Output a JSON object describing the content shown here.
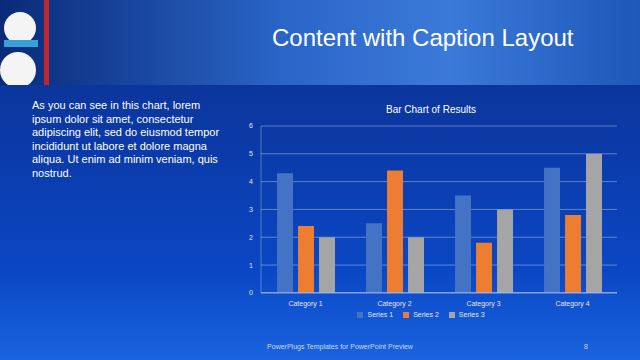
{
  "slide": {
    "title": "Content with Caption Layout",
    "caption": "As you can see in this chart, lorem ipsum dolor sit amet, consectetur adipiscing elit, sed do eiusmod tempor incididunt ut labore et dolore magna aliqua. Ut enim ad minim veniam, quis nostrud.",
    "footer": "PowerPlugs Templates for PowerPoint Preview",
    "page": "8"
  },
  "chart_data": {
    "type": "bar",
    "title": "Bar Chart of Results",
    "categories": [
      "Category 1",
      "Category 2",
      "Category 3",
      "Category 4"
    ],
    "series": [
      {
        "name": "Series 1",
        "color": "#4472c4",
        "values": [
          4.3,
          2.5,
          3.5,
          4.5
        ]
      },
      {
        "name": "Series 2",
        "color": "#ed7d31",
        "values": [
          2.4,
          4.4,
          1.8,
          2.8
        ]
      },
      {
        "name": "Series 3",
        "color": "#a5a5a5",
        "values": [
          2,
          2,
          3,
          5
        ]
      }
    ],
    "ylim": [
      0,
      6
    ],
    "yticks": [
      0,
      1,
      2,
      3,
      4,
      5,
      6
    ],
    "grid": true,
    "legend": "bottom"
  }
}
